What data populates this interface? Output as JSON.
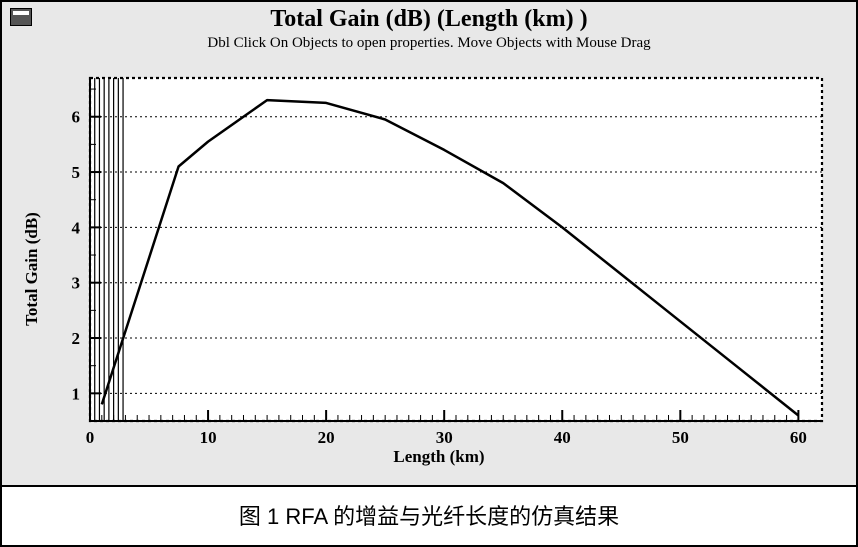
{
  "window": {
    "title": "Total Gain (dB) (Length (km) )",
    "subtitle": "Dbl Click On Objects to open properties.  Move Objects with Mouse Drag"
  },
  "chart": {
    "type": "line",
    "xlabel": "Length (km)",
    "ylabel": "Total Gain (dB)",
    "xlim": [
      0,
      62
    ],
    "ylim": [
      0.5,
      6.7
    ],
    "xticks": [
      0,
      10,
      20,
      30,
      40,
      50,
      60
    ],
    "yticks": [
      1,
      2,
      3,
      4,
      5,
      6
    ],
    "xminor": [
      0,
      1,
      2,
      3,
      4,
      5,
      6,
      7,
      8,
      9,
      10,
      11,
      12,
      13,
      14,
      15,
      16,
      17,
      18,
      19,
      20,
      21,
      22,
      23,
      24,
      25,
      26,
      27,
      28,
      29,
      30,
      31,
      32,
      33,
      34,
      35,
      36,
      37,
      38,
      39,
      40,
      41,
      42,
      43,
      44,
      45,
      46,
      47,
      48,
      49,
      50,
      51,
      52,
      53,
      54,
      55,
      56,
      57,
      58,
      59,
      60
    ],
    "grid_color": "#000000",
    "background_color": "#ffffff",
    "panel_color": "#e8e8e8",
    "line_color": "#000000",
    "line_width": 2.5,
    "border_dash": "3,3",
    "grid_dash": "2,3",
    "tick_fontsize": 17,
    "label_fontsize": 17,
    "title_fontsize": 24,
    "data": {
      "x": [
        1,
        7.5,
        10,
        15,
        20,
        25,
        30,
        35,
        40,
        45,
        50,
        55,
        60
      ],
      "y": [
        0.8,
        5.1,
        5.55,
        6.3,
        6.25,
        5.95,
        5.4,
        4.8,
        4.0,
        3.15,
        2.3,
        1.45,
        0.6
      ]
    }
  },
  "caption": "图 1  RFA 的增益与光纤长度的仿真结果"
}
